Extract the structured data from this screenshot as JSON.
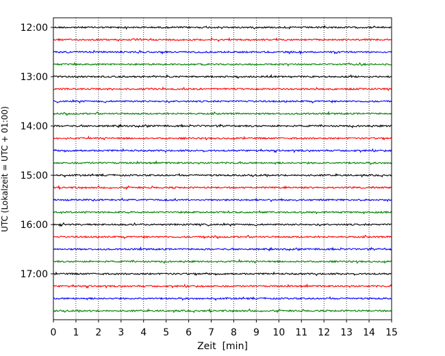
{
  "chart_data": {
    "type": "line",
    "title": "",
    "xlabel": "Zeit  [min]",
    "ylabel": "UTC (Lokalzeit = UTC + 01:00)",
    "xlim": [
      0,
      15
    ],
    "x_ticks": [
      "0",
      "1",
      "2",
      "3",
      "4",
      "5",
      "6",
      "7",
      "8",
      "9",
      "10",
      "11",
      "12",
      "13",
      "14",
      "15"
    ],
    "y_ticks": [
      "12:00",
      "13:00",
      "14:00",
      "15:00",
      "16:00",
      "17:00"
    ],
    "grid": "vertical dotted",
    "traces_per_hour": 4,
    "trace_interval_min": 15,
    "trace_colors": [
      "#000000",
      "#ff0000",
      "#0000ff",
      "#008000"
    ],
    "traces": [
      {
        "start": "12:00",
        "color": "#000000"
      },
      {
        "start": "12:15",
        "color": "#ff0000"
      },
      {
        "start": "12:30",
        "color": "#0000ff"
      },
      {
        "start": "12:45",
        "color": "#008000"
      },
      {
        "start": "13:00",
        "color": "#000000"
      },
      {
        "start": "13:15",
        "color": "#ff0000"
      },
      {
        "start": "13:30",
        "color": "#0000ff"
      },
      {
        "start": "13:45",
        "color": "#008000"
      },
      {
        "start": "14:00",
        "color": "#000000"
      },
      {
        "start": "14:15",
        "color": "#ff0000"
      },
      {
        "start": "14:30",
        "color": "#0000ff"
      },
      {
        "start": "14:45",
        "color": "#008000"
      },
      {
        "start": "15:00",
        "color": "#000000"
      },
      {
        "start": "15:15",
        "color": "#ff0000"
      },
      {
        "start": "15:30",
        "color": "#0000ff"
      },
      {
        "start": "15:45",
        "color": "#008000"
      },
      {
        "start": "16:00",
        "color": "#000000"
      },
      {
        "start": "16:15",
        "color": "#ff0000"
      },
      {
        "start": "16:30",
        "color": "#0000ff"
      },
      {
        "start": "16:45",
        "color": "#008000"
      },
      {
        "start": "17:00",
        "color": "#000000"
      },
      {
        "start": "17:15",
        "color": "#ff0000"
      },
      {
        "start": "17:30",
        "color": "#0000ff"
      },
      {
        "start": "17:45",
        "color": "#008000"
      }
    ]
  }
}
